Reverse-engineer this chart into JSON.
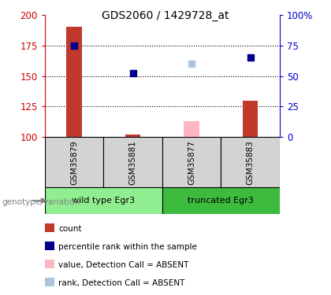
{
  "title": "GDS2060 / 1429728_at",
  "samples": [
    "GSM35879",
    "GSM35881",
    "GSM35877",
    "GSM35883"
  ],
  "xlim": [
    0.5,
    4.5
  ],
  "ylim_left": [
    100,
    200
  ],
  "ylim_right": [
    0,
    100
  ],
  "yticks_left": [
    100,
    125,
    150,
    175,
    200
  ],
  "yticks_right": [
    0,
    25,
    50,
    75,
    100
  ],
  "yticklabels_right": [
    "0",
    "25",
    "50",
    "75",
    "100%"
  ],
  "red_bars": {
    "GSM35879": 190,
    "GSM35881": 102,
    "GSM35883": 130
  },
  "pink_bars": {
    "GSM35877": 113
  },
  "blue_squares": {
    "GSM35879": 75,
    "GSM35881": 52,
    "GSM35883": 65
  },
  "light_blue_squares": {
    "GSM35877": 60
  },
  "groups": [
    {
      "label": "wild type Egr3",
      "samples": [
        "GSM35879",
        "GSM35881"
      ],
      "color": "#90ee90"
    },
    {
      "label": "truncated Egr3",
      "samples": [
        "GSM35877",
        "GSM35883"
      ],
      "color": "#3dbb3d"
    }
  ],
  "colors": {
    "red_bar": "#c0392b",
    "pink_bar": "#ffb6c1",
    "blue_square": "#00008b",
    "light_blue_square": "#b0c4de",
    "sample_box": "#d3d3d3",
    "left_axis_color": "#cc0000",
    "right_axis_color": "#0000cc"
  },
  "legend": [
    {
      "label": "count",
      "color": "#c0392b"
    },
    {
      "label": "percentile rank within the sample",
      "color": "#00008b"
    },
    {
      "label": "value, Detection Call = ABSENT",
      "color": "#ffb6c1"
    },
    {
      "label": "rank, Detection Call = ABSENT",
      "color": "#b0c4de"
    }
  ],
  "bar_width": 0.13,
  "square_size": 40,
  "grid_lines": [
    125,
    150,
    175
  ]
}
